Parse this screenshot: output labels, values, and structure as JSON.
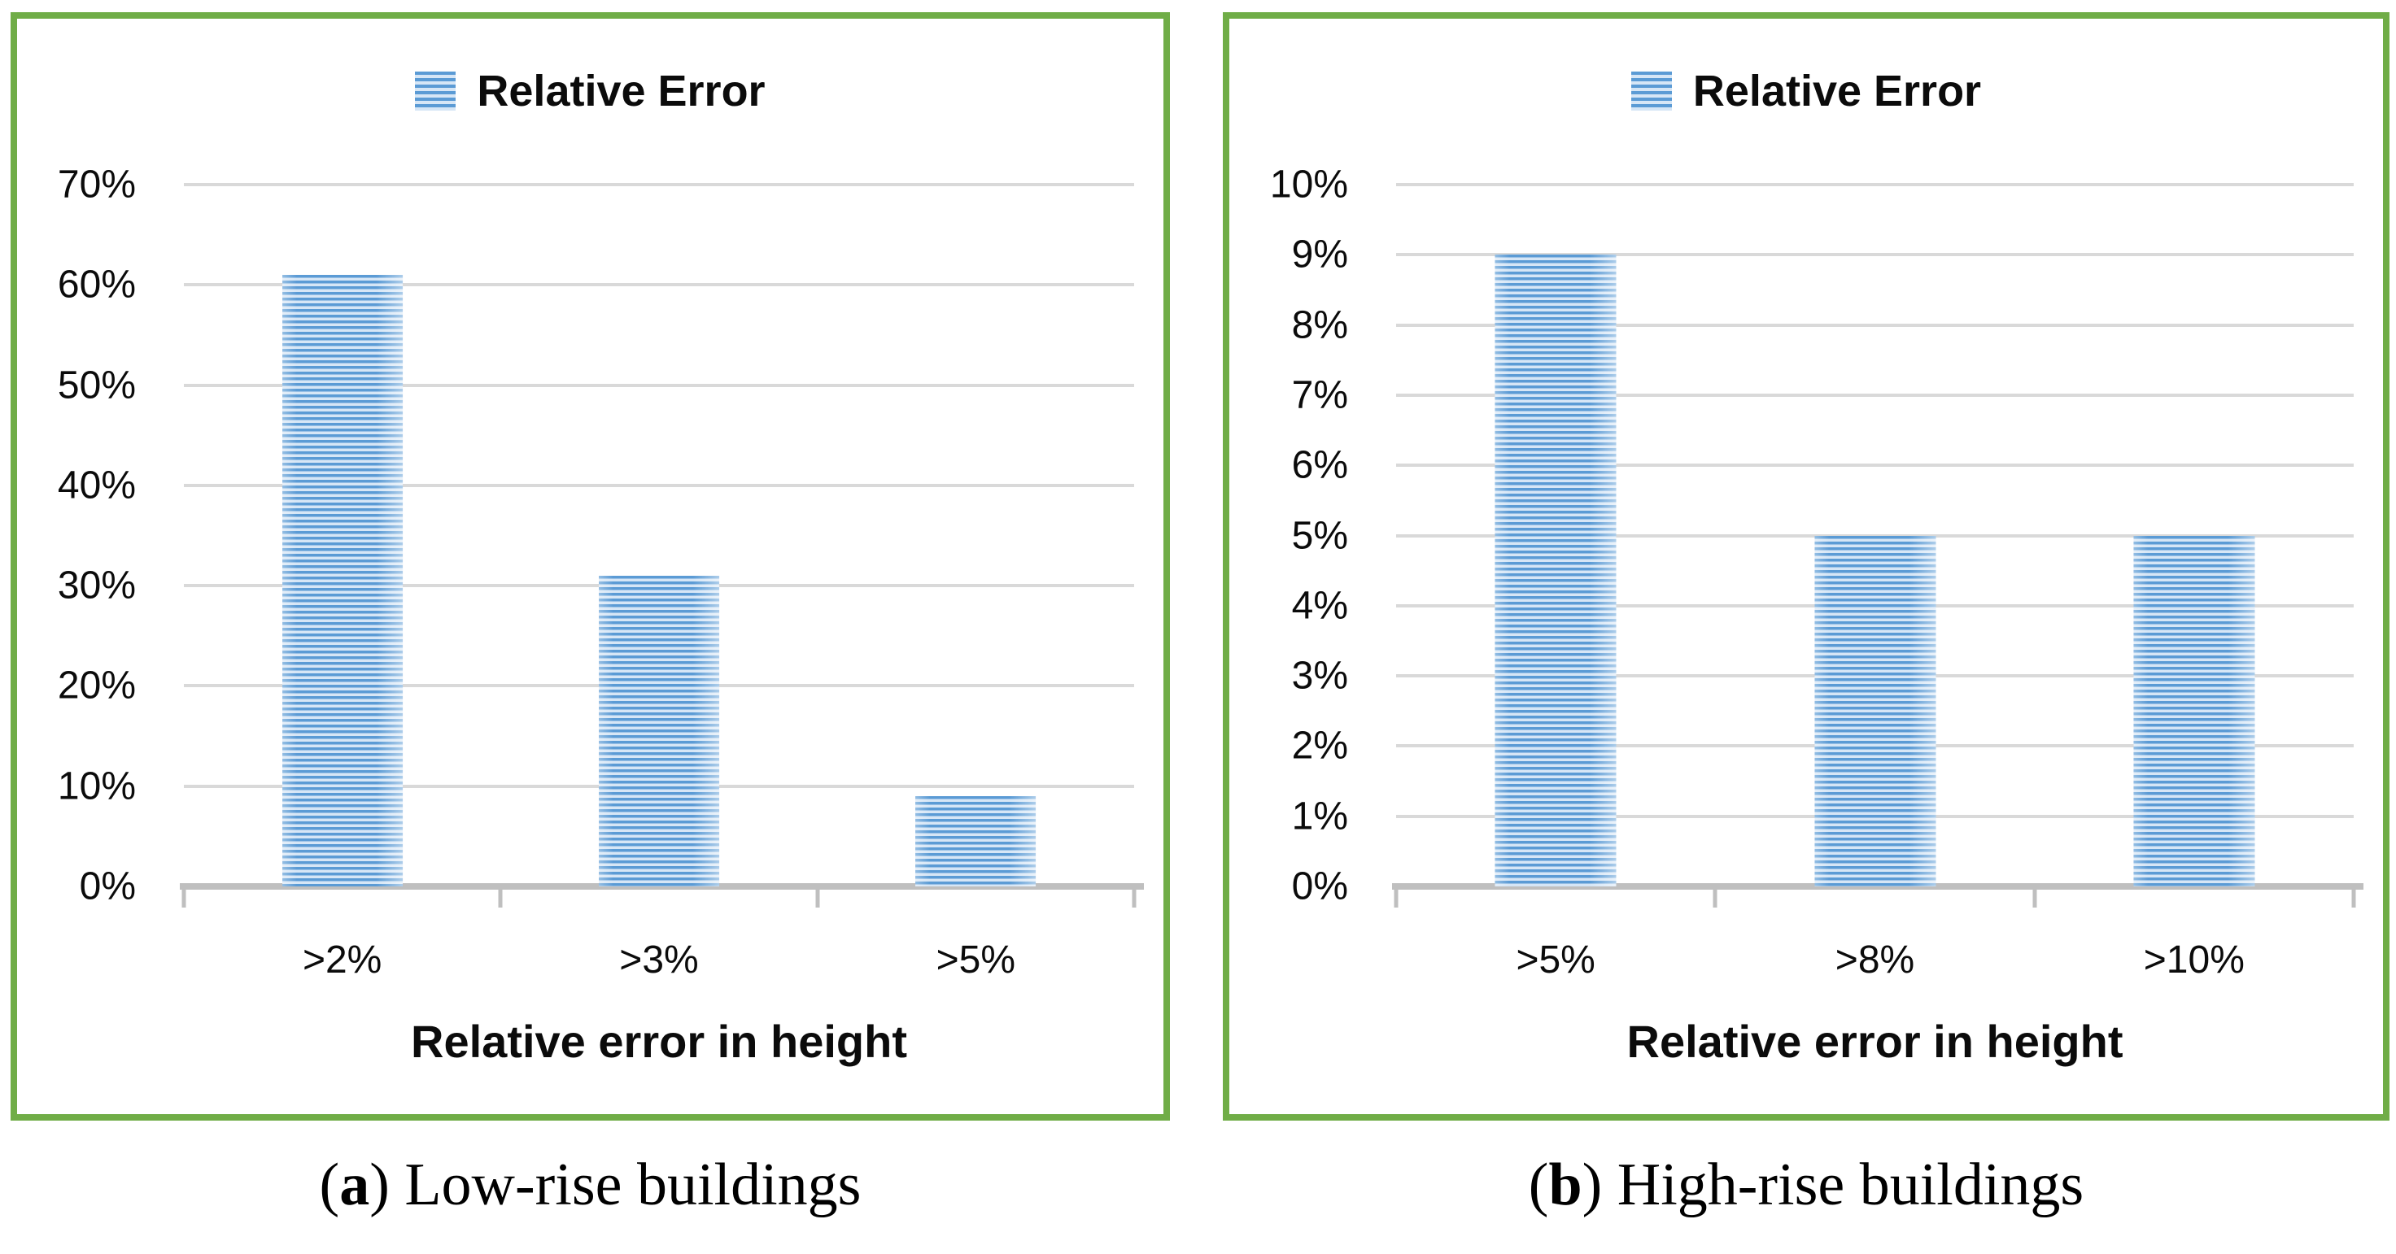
{
  "colors": {
    "panel_border": "#70AD47",
    "bar_primary": "#5B9BD5",
    "bar_stripe_light": "#D6E6F6",
    "gridline": "#D9D9D9",
    "axis_line": "#BFBFBF",
    "text": "#0b0b0b"
  },
  "chart_data": [
    {
      "type": "bar",
      "title": "",
      "legend": [
        "Relative Error"
      ],
      "legend_position": "top-center",
      "categories": [
        ">2%",
        ">3%",
        ">5%"
      ],
      "values": [
        61,
        31,
        9
      ],
      "xlabel": "Relative error in height",
      "ylabel": "",
      "ylim": [
        0,
        70
      ],
      "ytick_step": 10,
      "ytick_labels": [
        "0%",
        "10%",
        "20%",
        "30%",
        "40%",
        "50%",
        "60%",
        "70%"
      ],
      "grid": true,
      "bar_pattern": "horizontal-stripes"
    },
    {
      "type": "bar",
      "title": "",
      "legend": [
        "Relative Error"
      ],
      "legend_position": "top-center",
      "categories": [
        ">5%",
        ">8%",
        ">10%"
      ],
      "values": [
        9,
        5,
        5
      ],
      "xlabel": "Relative error in height",
      "ylabel": "",
      "ylim": [
        0,
        10
      ],
      "ytick_step": 1,
      "ytick_labels": [
        "0%",
        "1%",
        "2%",
        "3%",
        "4%",
        "5%",
        "6%",
        "7%",
        "8%",
        "9%",
        "10%"
      ],
      "grid": true,
      "bar_pattern": "horizontal-stripes"
    }
  ],
  "captions": [
    {
      "open": "(",
      "letter": "a",
      "close": ")",
      "text": " Low-rise buildings"
    },
    {
      "open": "(",
      "letter": "b",
      "close": ")",
      "text": " High-rise buildings"
    }
  ]
}
